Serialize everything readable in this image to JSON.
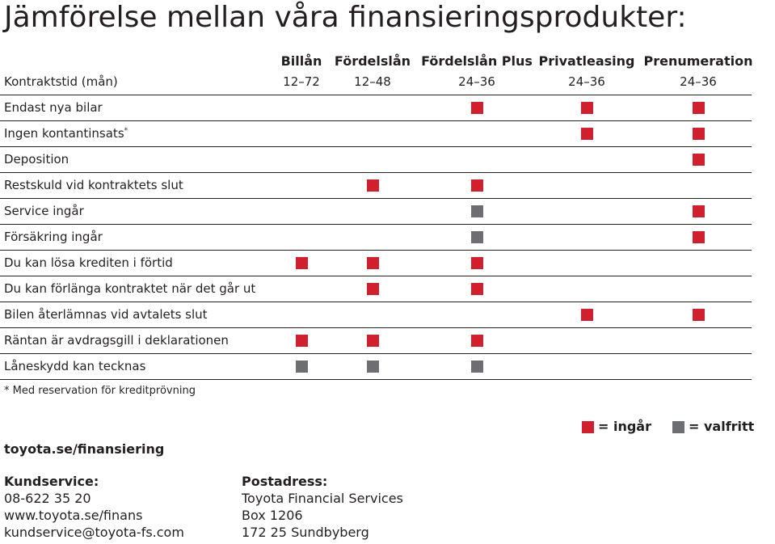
{
  "title": "Jämförelse mellan våra finansieringsprodukter:",
  "columns": [
    "Billån",
    "Fördelslån",
    "Fördelslån Plus",
    "Privatleasing",
    "Prenumeration"
  ],
  "term": {
    "label": "Kontraktstid (mån)",
    "values": [
      "12–72",
      "12–48",
      "24–36",
      "24–36",
      "24–36"
    ]
  },
  "rows": [
    {
      "label": "Endast nya bilar",
      "cells": [
        "",
        "",
        "ingår",
        "ingår",
        "ingår"
      ]
    },
    {
      "label": "Ingen kontantinsats",
      "sup": "*",
      "cells": [
        "",
        "",
        "",
        "ingår",
        "ingår"
      ]
    },
    {
      "label": "Deposition",
      "cells": [
        "",
        "",
        "",
        "",
        "ingår"
      ]
    },
    {
      "label": "Restskuld vid kontraktets slut",
      "cells": [
        "",
        "ingår",
        "ingår",
        "",
        ""
      ]
    },
    {
      "label": "Service ingår",
      "cells": [
        "",
        "",
        "valfritt",
        "",
        "ingår"
      ]
    },
    {
      "label": "Försäkring ingår",
      "cells": [
        "",
        "",
        "valfritt",
        "",
        "ingår"
      ]
    },
    {
      "label": "Du kan lösa krediten i förtid",
      "cells": [
        "ingår",
        "ingår",
        "ingår",
        "",
        ""
      ]
    },
    {
      "label": "Du kan förlänga kontraktet när det går ut",
      "cells": [
        "",
        "ingår",
        "ingår",
        "",
        ""
      ]
    },
    {
      "label": "Bilen återlämnas vid avtalets slut",
      "cells": [
        "",
        "",
        "",
        "ingår",
        "ingår"
      ]
    },
    {
      "label": "Räntan är avdragsgill i deklarationen",
      "cells": [
        "ingår",
        "ingår",
        "ingår",
        "",
        ""
      ]
    },
    {
      "label": "Låneskydd kan tecknas",
      "cells": [
        "valfritt",
        "valfritt",
        "valfritt",
        "",
        ""
      ]
    }
  ],
  "footnote": "* Med reservation för kreditprövning",
  "legend": {
    "included_label": "= ingår",
    "optional_label": "= valfritt",
    "included_color": "#d0202e",
    "optional_color": "#6d6e71"
  },
  "website": "toyota.se/finansiering",
  "customer_service": {
    "heading": "Kundservice:",
    "lines": [
      "08-622 35 20",
      "www.toyota.se/finans",
      "kundservice@toyota-fs.com"
    ]
  },
  "postal_address": {
    "heading": "Postadress:",
    "lines": [
      "Toyota Financial Services",
      "Box 1206",
      "172 25 Sundbyberg"
    ]
  }
}
